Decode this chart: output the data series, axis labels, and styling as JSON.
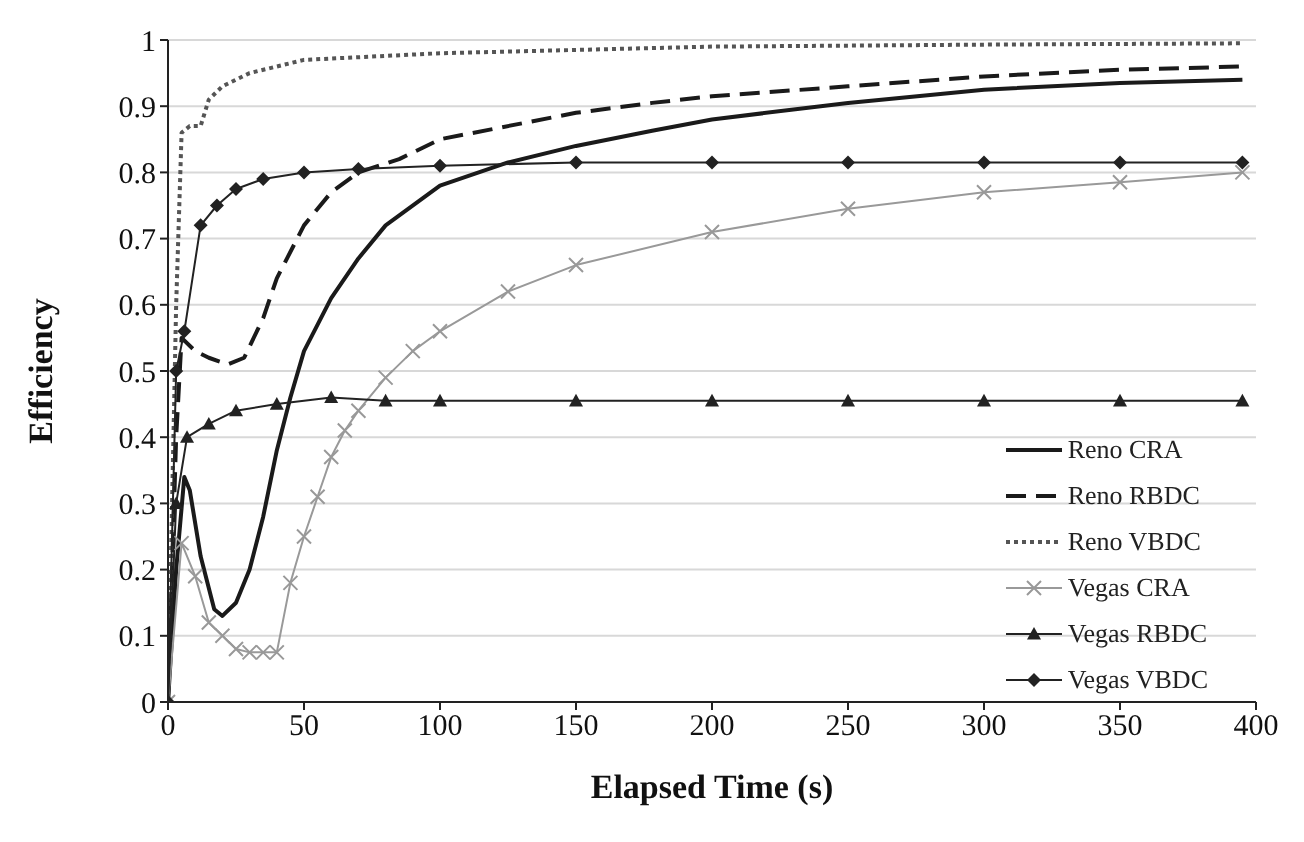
{
  "chart_data": {
    "type": "line",
    "xlabel": "Elapsed Time (s)",
    "ylabel": "Efficiency",
    "xlim": [
      0,
      400
    ],
    "xticks": [
      0,
      50,
      100,
      150,
      200,
      250,
      300,
      350,
      400
    ],
    "ylim": [
      0,
      1
    ],
    "yticks": [
      0,
      0.1,
      0.2,
      0.3,
      0.4,
      0.5,
      0.6,
      0.7,
      0.8,
      0.9,
      1
    ],
    "grid": "y",
    "legend": "bottom right",
    "series": [
      {
        "name": "Reno CRA",
        "color": "#1a1a1a",
        "line_style": "solid",
        "marker": "none",
        "x": [
          0,
          3,
          6,
          8,
          12,
          17,
          20,
          25,
          30,
          35,
          40,
          45,
          50,
          60,
          70,
          80,
          100,
          125,
          150,
          178,
          200,
          250,
          300,
          350,
          395
        ],
        "values": [
          0,
          0.2,
          0.34,
          0.32,
          0.22,
          0.14,
          0.13,
          0.15,
          0.2,
          0.28,
          0.38,
          0.46,
          0.53,
          0.61,
          0.67,
          0.72,
          0.78,
          0.815,
          0.84,
          0.863,
          0.88,
          0.905,
          0.925,
          0.935,
          0.94
        ]
      },
      {
        "name": "Reno RBDC",
        "color": "#1a1a1a",
        "line_style": "dashed",
        "marker": "none",
        "x": [
          0,
          3,
          5,
          10,
          15,
          22,
          28,
          35,
          40,
          50,
          60,
          70,
          85,
          100,
          150,
          178,
          200,
          250,
          300,
          350,
          395
        ],
        "values": [
          0,
          0.4,
          0.55,
          0.53,
          0.52,
          0.51,
          0.52,
          0.58,
          0.64,
          0.72,
          0.77,
          0.8,
          0.82,
          0.85,
          0.89,
          0.905,
          0.915,
          0.93,
          0.945,
          0.955,
          0.96
        ]
      },
      {
        "name": "Reno VBDC",
        "color": "#555555",
        "line_style": "dotted",
        "marker": "none",
        "x": [
          0,
          3,
          5,
          8,
          12,
          15,
          20,
          30,
          50,
          100,
          150,
          200,
          300,
          395
        ],
        "values": [
          0,
          0.6,
          0.86,
          0.87,
          0.87,
          0.91,
          0.93,
          0.95,
          0.97,
          0.98,
          0.985,
          0.99,
          0.993,
          0.995
        ]
      },
      {
        "name": "Vegas CRA",
        "color": "#999999",
        "line_style": "solid",
        "marker": "cross",
        "x": [
          0,
          5,
          10,
          15,
          20,
          25,
          30,
          35,
          40,
          45,
          50,
          55,
          60,
          65,
          70,
          80,
          90,
          100,
          125,
          150,
          200,
          250,
          300,
          350,
          395
        ],
        "values": [
          0,
          0.24,
          0.19,
          0.12,
          0.1,
          0.08,
          0.075,
          0.075,
          0.075,
          0.18,
          0.25,
          0.31,
          0.37,
          0.41,
          0.44,
          0.49,
          0.53,
          0.56,
          0.62,
          0.66,
          0.71,
          0.745,
          0.77,
          0.785,
          0.8
        ]
      },
      {
        "name": "Vegas RBDC",
        "color": "#222222",
        "line_style": "solid",
        "marker": "triangle",
        "x": [
          0,
          3,
          7,
          15,
          25,
          40,
          60,
          80,
          100,
          150,
          200,
          250,
          300,
          350,
          395
        ],
        "values": [
          0,
          0.3,
          0.4,
          0.42,
          0.44,
          0.45,
          0.46,
          0.455,
          0.455,
          0.455,
          0.455,
          0.455,
          0.455,
          0.455,
          0.455
        ]
      },
      {
        "name": "Vegas VBDC",
        "color": "#222222",
        "line_style": "solid",
        "marker": "diamond",
        "x": [
          0,
          3,
          6,
          12,
          18,
          25,
          35,
          50,
          70,
          100,
          150,
          200,
          250,
          300,
          350,
          395
        ],
        "values": [
          0,
          0.5,
          0.56,
          0.72,
          0.75,
          0.775,
          0.79,
          0.8,
          0.805,
          0.81,
          0.815,
          0.815,
          0.815,
          0.815,
          0.815,
          0.815
        ]
      }
    ]
  }
}
